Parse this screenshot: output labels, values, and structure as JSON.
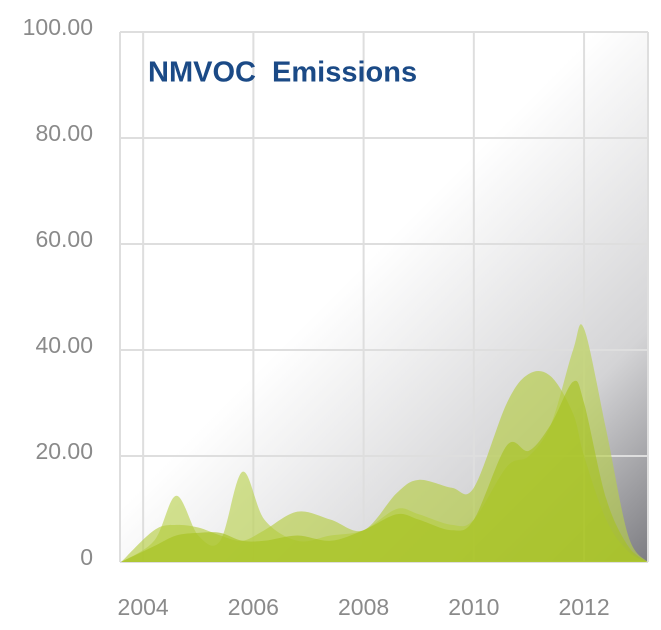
{
  "chart_data": {
    "type": "area",
    "title": "NMVOC  Emissions",
    "x": [
      2003.6,
      2004.2,
      2004.6,
      2005.0,
      2005.4,
      2005.8,
      2006.2,
      2006.8,
      2007.4,
      2008.0,
      2008.6,
      2009.0,
      2009.6,
      2010.0,
      2010.6,
      2011.0,
      2011.4,
      2011.8,
      2012.0,
      2012.4,
      2012.8,
      2013.15
    ],
    "series": [
      {
        "color": "#b8d14a",
        "values": [
          0,
          4,
          12.5,
          5,
          4,
          17,
          8,
          4,
          5,
          6,
          10,
          9,
          7,
          8,
          18,
          20,
          26,
          40,
          44,
          25,
          5,
          0
        ]
      },
      {
        "color": "#b3cc3c",
        "values": [
          0,
          6,
          7,
          6.5,
          5,
          4,
          6,
          9.5,
          8,
          6,
          13,
          15.5,
          14,
          14,
          30,
          35.5,
          35,
          28,
          20,
          8,
          2,
          0
        ]
      },
      {
        "color": "#a6c21e",
        "values": [
          0,
          3,
          5,
          5.5,
          5.5,
          4,
          4,
          5,
          4,
          6,
          9,
          8,
          6,
          8,
          22,
          21,
          26,
          34,
          30,
          12,
          3,
          0
        ]
      }
    ],
    "xlim": [
      2003.58,
      2013.16
    ],
    "xticks": [
      2004,
      2006,
      2008,
      2010,
      2012
    ],
    "ylim": [
      0,
      100
    ],
    "yticks": [
      0,
      {
        "value": 20,
        "label": "20.00"
      },
      {
        "value": 40,
        "label": "40.00"
      },
      {
        "value": 60,
        "label": "60.00"
      },
      {
        "value": 80,
        "label": "80.00"
      },
      {
        "value": 100,
        "label": "100.00"
      }
    ],
    "grid": true
  }
}
